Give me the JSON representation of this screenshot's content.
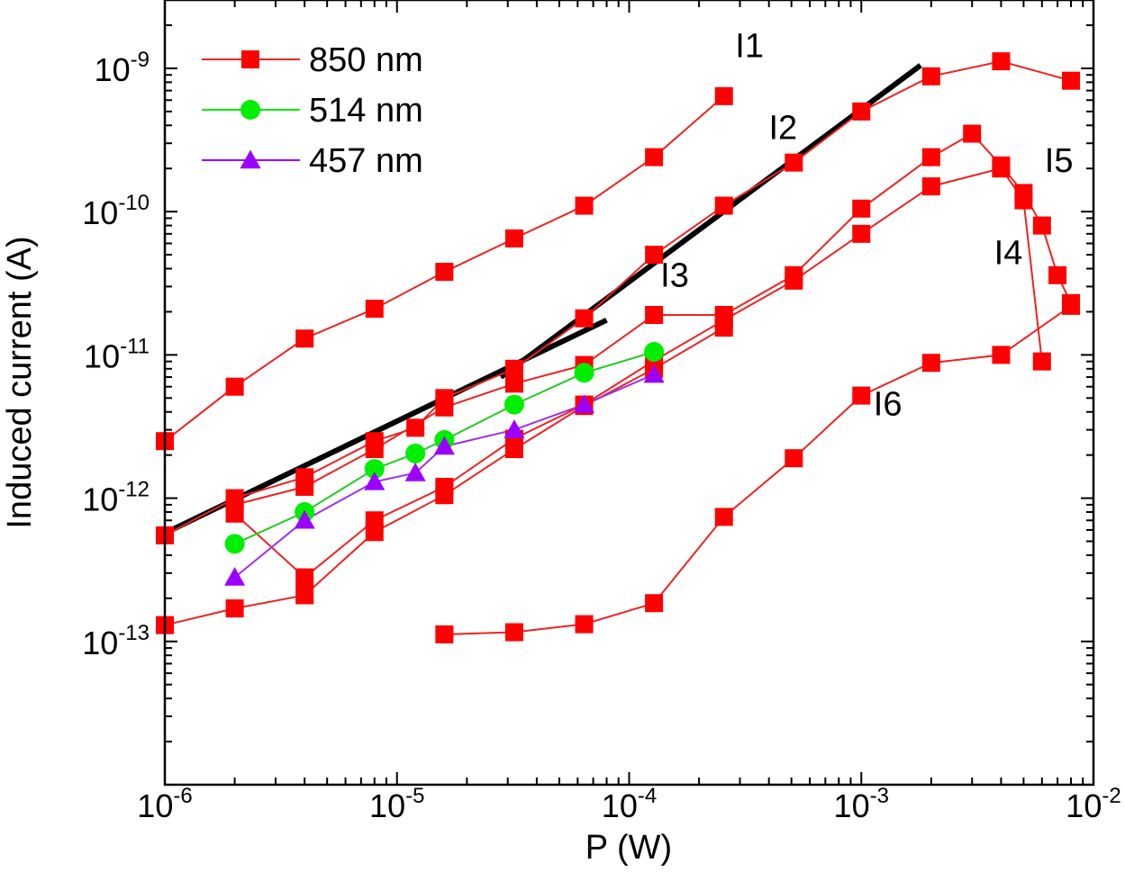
{
  "chart_data": {
    "type": "line",
    "xlabel": "P (W)",
    "ylabel": "Induced current (A)",
    "xscale": "log",
    "yscale": "log",
    "xlim": [
      1e-06,
      0.01
    ],
    "ylim": [
      1e-14,
      3e-09
    ],
    "x_ticks": [
      {
        "base": "10",
        "exp": "-6",
        "value": 1e-06
      },
      {
        "base": "10",
        "exp": "-5",
        "value": 1e-05
      },
      {
        "base": "10",
        "exp": "-4",
        "value": 0.0001
      },
      {
        "base": "10",
        "exp": "-3",
        "value": 0.001
      },
      {
        "base": "10",
        "exp": "-2",
        "value": 0.01
      }
    ],
    "y_ticks": [
      {
        "base": "10",
        "exp": "-13",
        "value": 1e-13
      },
      {
        "base": "10",
        "exp": "-12",
        "value": 1e-12
      },
      {
        "base": "10",
        "exp": "-11",
        "value": 1e-11
      },
      {
        "base": "10",
        "exp": "-10",
        "value": 1e-10
      },
      {
        "base": "10",
        "exp": "-9",
        "value": 1e-09
      }
    ],
    "grid": false,
    "legend_position": "top-left",
    "legend": [
      {
        "label": "850 nm",
        "color": "#ff0000",
        "marker": "square"
      },
      {
        "label": "514 nm",
        "color": "#00ee00",
        "marker": "circle"
      },
      {
        "label": "457 nm",
        "color": "#9b00ff",
        "marker": "triangle"
      }
    ],
    "series": [
      {
        "group": "850 nm",
        "color": "#ff0000",
        "line_color": "#ee2222",
        "marker": "square",
        "points": [
          [
            1e-06,
            2.5e-12
          ],
          [
            2e-06,
            6e-12
          ],
          [
            4e-06,
            1.3e-11
          ],
          [
            8e-06,
            2.1e-11
          ],
          [
            1.6e-05,
            3.8e-11
          ],
          [
            3.2e-05,
            6.5e-11
          ],
          [
            6.4e-05,
            1.1e-10
          ],
          [
            0.000128,
            2.4e-10
          ],
          [
            0.000256,
            6.4e-10
          ]
        ]
      },
      {
        "group": "850 nm",
        "color": "#ff0000",
        "line_color": "#ee2222",
        "marker": "square",
        "points": [
          [
            1e-06,
            5.5e-13
          ],
          [
            2e-06,
            1e-12
          ],
          [
            4e-06,
            1.4e-12
          ],
          [
            8e-06,
            2.5e-12
          ],
          [
            1.2e-05,
            3.1e-12
          ],
          [
            1.6e-05,
            5e-12
          ],
          [
            3.2e-05,
            8e-12
          ],
          [
            6.4e-05,
            1.8e-11
          ],
          [
            0.000128,
            5e-11
          ],
          [
            0.000256,
            1.1e-10
          ],
          [
            0.000512,
            2.2e-10
          ],
          [
            0.001,
            5e-10
          ],
          [
            0.002,
            8.8e-10
          ],
          [
            0.004,
            1.12e-09
          ],
          [
            0.008,
            8.2e-10
          ]
        ]
      },
      {
        "group": "850 nm",
        "color": "#ff0000",
        "line_color": "#ee2222",
        "marker": "square",
        "points": [
          [
            2e-06,
            9e-13
          ],
          [
            4e-06,
            1.2e-12
          ],
          [
            8e-06,
            2.2e-12
          ],
          [
            1.6e-05,
            4.3e-12
          ],
          [
            3.2e-05,
            6.3e-12
          ],
          [
            6.4e-05,
            8.5e-12
          ],
          [
            0.000128,
            1.9e-11
          ],
          [
            0.000256,
            1.9e-11
          ],
          [
            0.000512,
            3.6e-11
          ],
          [
            0.001,
            1.05e-10
          ],
          [
            0.002,
            2.4e-10
          ],
          [
            0.003,
            3.5e-10
          ],
          [
            0.004,
            2.1e-10
          ],
          [
            0.005,
            1.35e-10
          ],
          [
            0.006,
            8e-11
          ],
          [
            0.007,
            3.6e-11
          ],
          [
            0.008,
            2.3e-11
          ]
        ]
      },
      {
        "group": "850 nm",
        "color": "#ff0000",
        "line_color": "#ee2222",
        "marker": "square",
        "points": [
          [
            2e-06,
            7.8e-13
          ],
          [
            4e-06,
            2.8e-13
          ],
          [
            8e-06,
            7e-13
          ],
          [
            1.6e-05,
            1.2e-12
          ],
          [
            3.2e-05,
            2.6e-12
          ],
          [
            6.4e-05,
            4.5e-12
          ],
          [
            0.000128,
            9.1e-12
          ],
          [
            0.000256,
            1.75e-11
          ],
          [
            0.000512,
            3.3e-11
          ],
          [
            0.001,
            7e-11
          ],
          [
            0.002,
            1.5e-10
          ],
          [
            0.004,
            2e-10
          ],
          [
            0.005,
            1.2e-10
          ],
          [
            0.006,
            9e-12
          ]
        ]
      },
      {
        "group": "850 nm",
        "color": "#ff0000",
        "line_color": "#ee2222",
        "marker": "square",
        "points": [
          [
            1e-06,
            1.3e-13
          ],
          [
            2e-06,
            1.7e-13
          ],
          [
            4e-06,
            2.1e-13
          ],
          [
            8e-06,
            5.8e-13
          ],
          [
            1.6e-05,
            1.05e-12
          ],
          [
            3.2e-05,
            2.2e-12
          ],
          [
            6.4e-05,
            4.4e-12
          ],
          [
            0.000128,
            8e-12
          ],
          [
            0.000256,
            1.55e-11
          ]
        ]
      },
      {
        "group": "850 nm",
        "color": "#ff0000",
        "line_color": "#ee2222",
        "marker": "square",
        "points": [
          [
            1.6e-05,
            1.12e-13
          ],
          [
            3.2e-05,
            1.16e-13
          ],
          [
            6.4e-05,
            1.32e-13
          ],
          [
            0.000128,
            1.85e-13
          ],
          [
            0.000256,
            7.4e-13
          ],
          [
            0.000512,
            1.9e-12
          ],
          [
            0.001,
            5.2e-12
          ],
          [
            0.002,
            8.8e-12
          ],
          [
            0.004,
            1e-11
          ],
          [
            0.008,
            2.2e-11
          ]
        ]
      },
      {
        "group": "514 nm",
        "color": "#00ee00",
        "line_color": "#22cc22",
        "marker": "circle",
        "points": [
          [
            2e-06,
            4.8e-13
          ],
          [
            4e-06,
            8e-13
          ],
          [
            8e-06,
            1.6e-12
          ],
          [
            1.2e-05,
            2.05e-12
          ],
          [
            1.6e-05,
            2.55e-12
          ],
          [
            3.2e-05,
            4.5e-12
          ],
          [
            6.4e-05,
            7.5e-12
          ],
          [
            0.000128,
            1.05e-11
          ]
        ]
      },
      {
        "group": "457 nm",
        "color": "#9b00ff",
        "line_color": "#9b30ee",
        "marker": "triangle",
        "points": [
          [
            2e-06,
            2.8e-13
          ],
          [
            4e-06,
            7e-13
          ],
          [
            8e-06,
            1.3e-12
          ],
          [
            1.2e-05,
            1.5e-12
          ],
          [
            1.6e-05,
            2.3e-12
          ],
          [
            3.2e-05,
            3e-12
          ],
          [
            6.4e-05,
            4.5e-12
          ],
          [
            0.000128,
            7.3e-12
          ]
        ]
      }
    ],
    "fit_lines": [
      {
        "color": "#000000",
        "from": [
          1e-06,
          5.7e-13
        ],
        "to": [
          8e-05,
          1.75e-11
        ]
      },
      {
        "color": "#000000",
        "from": [
          2.8e-05,
          7e-12
        ],
        "to": [
          0.0018,
          1.05e-09
        ]
      }
    ],
    "annotations": [
      {
        "text": "I1",
        "x": 0.00033,
        "y": 1.2e-09
      },
      {
        "text": "I2",
        "x": 0.00046,
        "y": 3.2e-10
      },
      {
        "text": "I3",
        "x": 0.000157,
        "y": 3e-11
      },
      {
        "text": "I4",
        "x": 0.0043,
        "y": 4.3e-11
      },
      {
        "text": "I5",
        "x": 0.0071,
        "y": 1.9e-10
      },
      {
        "text": "I6",
        "x": 0.0013,
        "y": 3.8e-12
      }
    ]
  }
}
